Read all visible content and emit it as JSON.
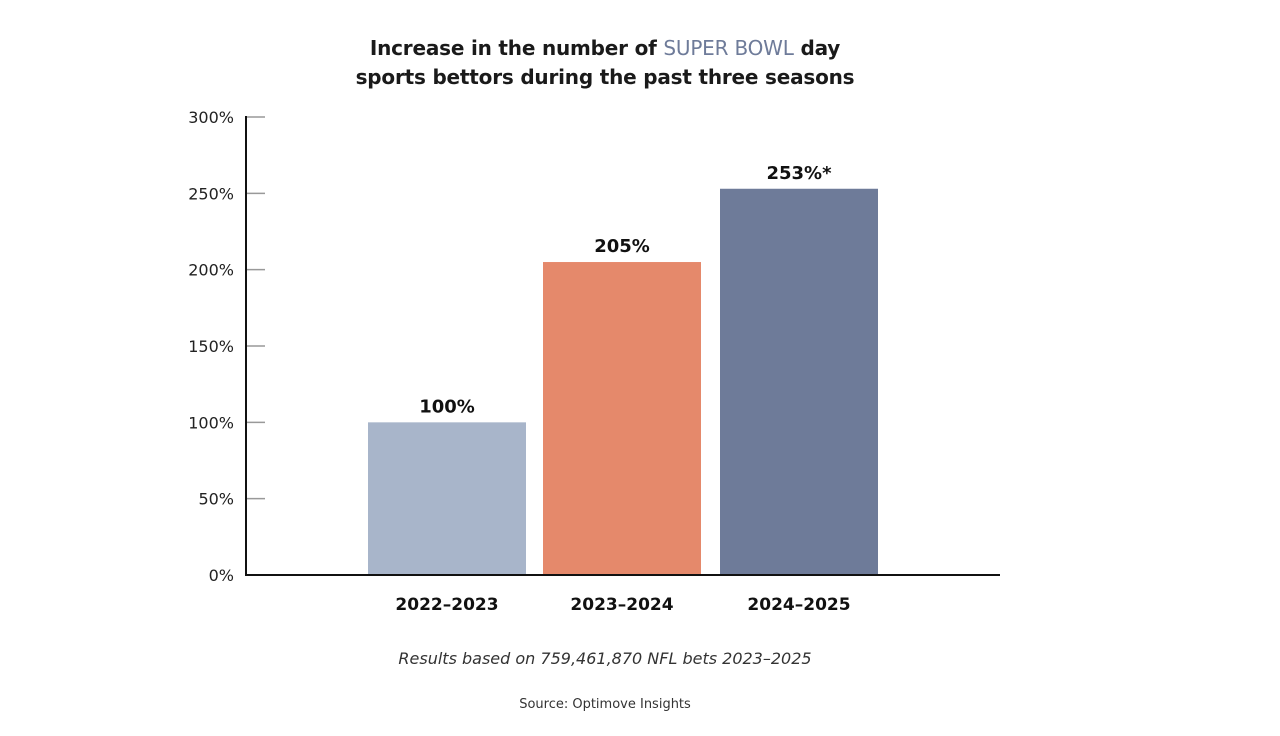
{
  "chart_data": {
    "type": "bar",
    "title_parts": [
      "Increase in the number of ",
      "SUPER BOWL",
      " day",
      "sports bettors during the past three seasons"
    ],
    "categories": [
      "2022–2023",
      "2023–2024",
      "2024–2025"
    ],
    "values": [
      100,
      205,
      253
    ],
    "data_labels": [
      "100%",
      "205%",
      "253%*"
    ],
    "colors": [
      "#a8b5ca",
      "#e5896b",
      "#6e7b99"
    ],
    "highlight_color": "#6e7b99",
    "yticks": [
      0,
      50,
      100,
      150,
      200,
      250,
      300
    ],
    "ytick_labels": [
      "0%",
      "50%",
      "100%",
      "150%",
      "200%",
      "250%",
      "300%"
    ],
    "ylim": [
      0,
      300
    ],
    "xlabel": "",
    "ylabel": "",
    "grid": false,
    "legend": "none"
  },
  "footnote": "Results based on 759,461,870 NFL bets 2023–2025",
  "source": "Source: Optimove Insights"
}
